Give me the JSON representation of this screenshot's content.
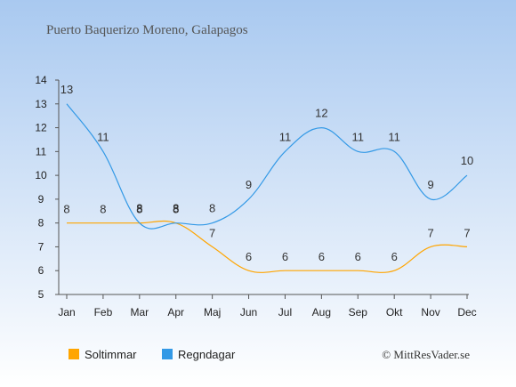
{
  "chart_data": {
    "type": "line",
    "title": "Puerto Baquerizo Moreno, Galapagos",
    "categories": [
      "Jan",
      "Feb",
      "Mar",
      "Apr",
      "Maj",
      "Jun",
      "Jul",
      "Aug",
      "Sep",
      "Okt",
      "Nov",
      "Dec"
    ],
    "ylim": [
      5,
      14
    ],
    "yticks": [
      "5",
      "6",
      "7",
      "8",
      "9",
      "10",
      "11",
      "12",
      "13",
      "14"
    ],
    "grid": false,
    "legend_position": "bottom-left",
    "series": [
      {
        "name": "Soltimmar",
        "color": "#ffa500",
        "values": [
          8,
          8,
          8,
          8,
          7,
          6,
          6,
          6,
          6,
          6,
          7,
          7
        ]
      },
      {
        "name": "Regndagar",
        "color": "#3399e6",
        "values": [
          13,
          11,
          8,
          8,
          8,
          9,
          11,
          12,
          11,
          11,
          9,
          10
        ]
      }
    ],
    "credit": "© MittResVader.se"
  }
}
